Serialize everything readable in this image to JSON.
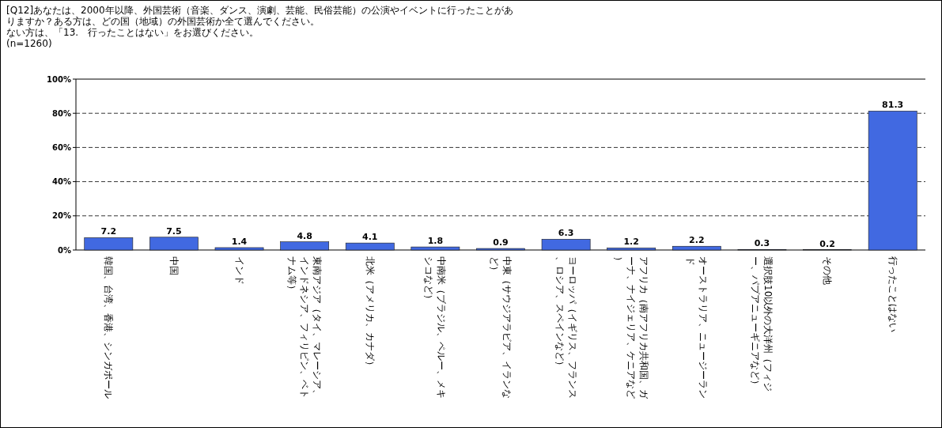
{
  "chart_data": {
    "type": "bar",
    "title": "[Q12]あなたは、2000年以降、外国芸術（音楽、ダンス、演劇、芸能、民俗芸能）の公演やイベントに行ったことがありますか？ある方は、どの国（地域）の外国芸術か全て選んでください。",
    "subtitle": "ない方は、「13.　行ったことはない」をお選びください。",
    "annotations": [
      "(n=1260)"
    ],
    "categories": [
      "韓国、台湾、香港、シンガポール",
      "中国",
      "インド",
      "東南アジア（タイ、マレーシア、インドネシア、フィリピン、ベトナム等）",
      "北米（アメリカ、カナダ）",
      "中南米（ブラジル、ペルー、メキシコなど）",
      "中東（サウジアラビア、イランなど）",
      "ヨーロッパ（イギリス、フランス、ロシア、スペインなど）",
      "アフリカ（南アフリカ共和国、ガーナ、ナイジェリア、ケニアなど）",
      "オーストラリア、ニュージーランド",
      "選択肢10以外の大洋州（フィジー、パプアニューギニアなど）",
      "その他",
      "行ったことはない"
    ],
    "values": [
      7.2,
      7.5,
      1.4,
      4.8,
      4.1,
      1.8,
      0.9,
      6.3,
      1.2,
      2.2,
      0.3,
      0.2,
      81.3
    ],
    "color": "#4169e1",
    "ylim": [
      0,
      100
    ],
    "yticks": [
      {
        "value": 0,
        "label": "0%"
      },
      {
        "value": 20,
        "label": "20%"
      },
      {
        "value": 40,
        "label": "40%"
      },
      {
        "value": 60,
        "label": "60%"
      },
      {
        "value": 80,
        "label": "80%"
      },
      {
        "value": 100,
        "label": "100%"
      }
    ],
    "grid": "y",
    "data_labels": true
  }
}
